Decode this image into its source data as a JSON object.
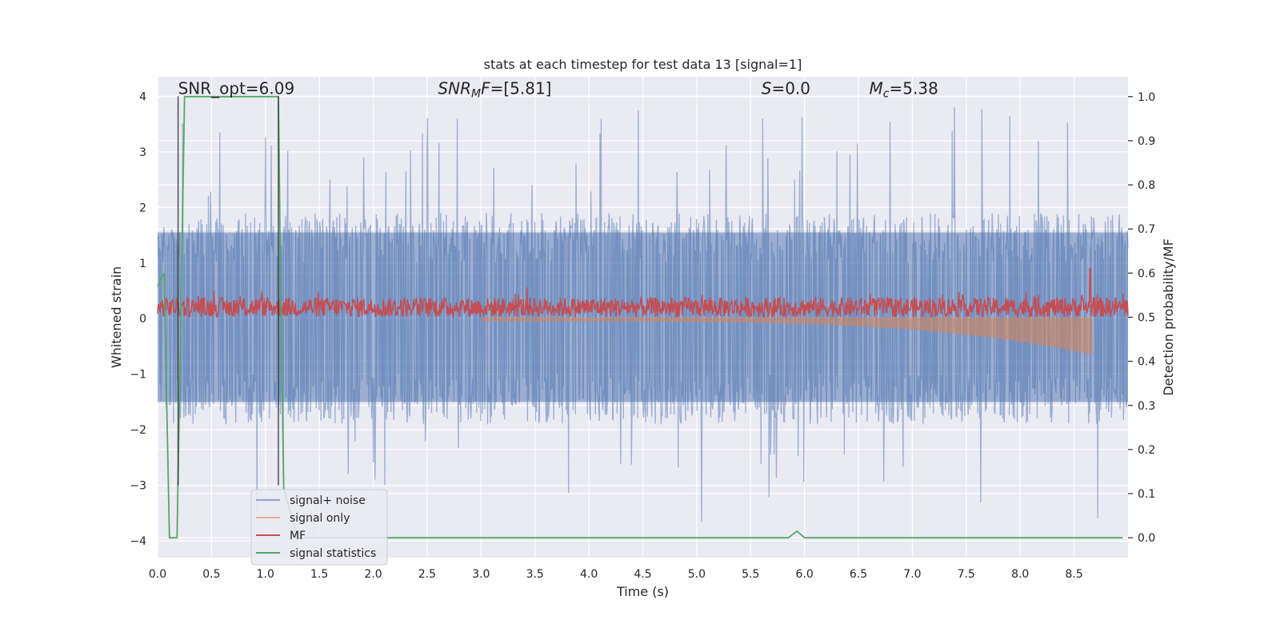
{
  "chart_data": {
    "type": "line",
    "title": "stats at each timestep for test data 13 [signal=1]",
    "xlabel": "Time (s)",
    "ylabel": "Whitened strain",
    "ylabel_right": "Detection probability/MF",
    "xlim": [
      0.0,
      9.0
    ],
    "ylim": [
      -4.3,
      4.35
    ],
    "ylim_right": [
      -0.045,
      1.045
    ],
    "x_ticks": [
      "0.0",
      "0.5",
      "1.0",
      "1.5",
      "2.0",
      "2.5",
      "3.0",
      "3.5",
      "4.0",
      "4.5",
      "5.0",
      "5.5",
      "6.0",
      "6.5",
      "7.0",
      "7.5",
      "8.0",
      "8.5"
    ],
    "y_ticks": [
      "−4",
      "−3",
      "−2",
      "−1",
      "0",
      "1",
      "2",
      "3",
      "4"
    ],
    "y_ticks_right": [
      "0.0",
      "0.1",
      "0.2",
      "0.3",
      "0.4",
      "0.5",
      "0.6",
      "0.7",
      "0.8",
      "0.9",
      "1.0"
    ],
    "grid": true,
    "background": "#eaeaf2",
    "legend_position": "lower-left",
    "annotations": [
      {
        "text": "SNR_opt=6.09",
        "x": 0.19,
        "y": 4.1
      },
      {
        "base": "SNR",
        "sub": "M",
        "rest": "F=[5.81]",
        "x": 2.6,
        "y": 4.1
      },
      {
        "base": "S",
        "sub": "",
        "rest": "=0.0",
        "x": 5.6,
        "y": 4.1
      },
      {
        "base": "M",
        "sub": "c",
        "rest": "=5.38",
        "x": 6.6,
        "y": 4.1
      }
    ],
    "vertical_markers": [
      0.19,
      1.12
    ],
    "series": [
      {
        "name": "signal+ noise",
        "color": "#4c72b0",
        "axis": "left",
        "envelope_upper": 1.55,
        "envelope_lower": -1.5,
        "peak_range": 4.0
      },
      {
        "name": "signal only",
        "color": "#dd8452",
        "axis": "left",
        "x_start": 3.0,
        "x_end": 8.67,
        "amplitude_start": 0.05,
        "amplitude_end": 0.65
      },
      {
        "name": "MF",
        "color": "#c44e52",
        "axis": "right",
        "baseline": 0.5,
        "noise_range": [
          0.5,
          0.545
        ],
        "spike": {
          "x": 8.65,
          "y": 0.61
        }
      },
      {
        "name": "signal statistics",
        "color": "#55a868",
        "axis": "right",
        "x": [
          0.0,
          0.06,
          0.11,
          0.18,
          0.25,
          1.12,
          1.14,
          1.17,
          1.3,
          5.85,
          5.93,
          6.0,
          8.95
        ],
        "y": [
          0.57,
          0.6,
          0.0,
          0.0,
          1.0,
          1.0,
          0.6,
          0.11,
          0.0,
          0.0,
          0.015,
          0.0,
          0.0
        ]
      }
    ]
  }
}
